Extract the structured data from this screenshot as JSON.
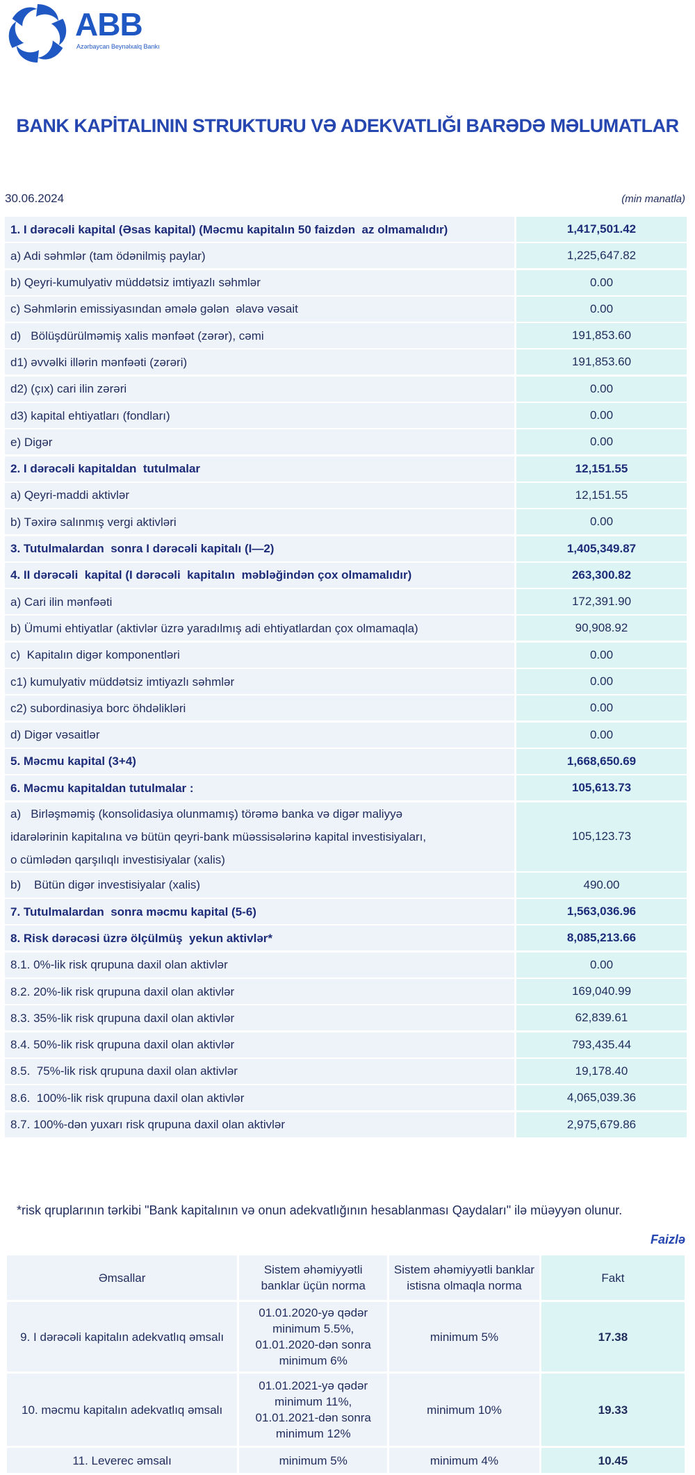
{
  "header": {
    "logo_text": "ABB",
    "logo_subtitle": "Azərbaycan Beynəlxalq Bankı",
    "title": "BANK KAPİTALININ STRUKTURU VƏ ADEKVATLIĞI BARƏDƏ MƏLUMATLAR",
    "date": "30.06.2024",
    "unit": "(min manatla)"
  },
  "table": {
    "rows": [
      {
        "label": [
          "1. I dərəcəli kapital (Əsas kapital) (Məcmu kapitalın 50 faizdən  az olmamalıdır)"
        ],
        "value": "1,417,501.42",
        "emphasis": true
      },
      {
        "label": [
          "a) Adi səhmlər (tam ödənilmiş paylar)"
        ],
        "value": "1,225,647.82"
      },
      {
        "label": [
          "b) Qeyri-kumulyativ müddətsiz imtiyazlı səhmlər"
        ],
        "value": "0.00"
      },
      {
        "label": [
          "c) Səhmlərin emissiyasından əmələ gələn  əlavə vəsait"
        ],
        "value": "0.00"
      },
      {
        "label": [
          "d)   Bölüşdürülməmiş xalis mənfəət (zərər), cəmi"
        ],
        "value": "191,853.60"
      },
      {
        "label": [
          "d1) əvvəlki illərin mənfəəti (zərəri)"
        ],
        "value": "191,853.60"
      },
      {
        "label": [
          "d2) (çıx) cari ilin zərəri"
        ],
        "value": "0.00"
      },
      {
        "label": [
          "d3) kapital ehtiyatları (fondları)"
        ],
        "value": "0.00"
      },
      {
        "label": [
          "e) Digər"
        ],
        "value": "0.00"
      },
      {
        "label": [
          "2. I dərəcəli kapitaldan  tutulmalar"
        ],
        "value": "12,151.55",
        "emphasis": true
      },
      {
        "label": [
          "a) Qeyri-maddi aktivlər"
        ],
        "value": "12,151.55"
      },
      {
        "label": [
          "b) Təxirə salınmış vergi aktivləri"
        ],
        "value": "0.00"
      },
      {
        "label": [
          "3. Tutulmalardan  sonra I dərəcəli kapitalı (I—2)"
        ],
        "value": "1,405,349.87",
        "emphasis": true
      },
      {
        "label": [
          "4. II dərəcəli  kapital (I dərəcəli  kapitalın  məbləğindən çox olmamalıdır)"
        ],
        "value": "263,300.82",
        "emphasis": true
      },
      {
        "label": [
          "a) Cari ilin mənfəəti"
        ],
        "value": "172,391.90"
      },
      {
        "label": [
          "b) Ümumi ehtiyatlar (aktivlər üzrə yaradılmış adi ehtiyatlardan çox olmamaqla)"
        ],
        "value": "90,908.92"
      },
      {
        "label": [
          "c)  Kapitalın digər komponentləri"
        ],
        "value": "0.00"
      },
      {
        "label": [
          "c1) kumulyativ müddətsiz imtiyazlı səhmlər"
        ],
        "value": "0.00"
      },
      {
        "label": [
          "c2) subordinasiya borc öhdəlikləri"
        ],
        "value": "0.00"
      },
      {
        "label": [
          "d) Digər vəsaitlər"
        ],
        "value": "0.00"
      },
      {
        "label": [
          "5. Məcmu kapital (3+4)"
        ],
        "value": "1,668,650.69",
        "emphasis": true
      },
      {
        "label": [
          "6. Məcmu kapitaldan tutulmalar :"
        ],
        "value": "105,613.73",
        "emphasis": true
      },
      {
        "label": [
          "a)   Birləşməmiş (konsolidasiya olunmamış) törəmə banka və digər maliyyə",
          "idarələrinin kapitalına və bütün qeyri-bank müəssisələrinə kapital investisiyaları,",
          "o cümlədən qarşılıqlı investisiyalar (xalis)"
        ],
        "value": "105,123.73"
      },
      {
        "label": [
          "b)    Bütün digər investisiyalar (xalis)"
        ],
        "value": "490.00"
      },
      {
        "label": [
          "7. Tutulmalardan  sonra məcmu kapital (5-6)"
        ],
        "value": "1,563,036.96",
        "emphasis": true
      },
      {
        "label": [
          "8. Risk dərəcəsi üzrə ölçülmüş  yekun aktivlər*"
        ],
        "value": "8,085,213.66",
        "emphasis": true
      },
      {
        "label": [
          "8.1. 0%-lik risk qrupuna daxil olan aktivlər"
        ],
        "value": "0.00"
      },
      {
        "label": [
          "8.2. 20%-lik risk qrupuna daxil olan aktivlər"
        ],
        "value": "169,040.99"
      },
      {
        "label": [
          "8.3. 35%-lik risk qrupuna daxil olan aktivlər"
        ],
        "value": "62,839.61"
      },
      {
        "label": [
          "8.4. 50%-lik risk qrupuna daxil olan aktivlər"
        ],
        "value": "793,435.44"
      },
      {
        "label": [
          "8.5.  75%-lik risk qrupuna daxil olan aktivlər"
        ],
        "value": "19,178.40"
      },
      {
        "label": [
          "8.6.  100%-lik risk qrupuna daxil olan aktivlər"
        ],
        "value": "4,065,039.36"
      },
      {
        "label": [
          "8.7. 100%-dən yuxarı risk qrupuna daxil olan aktivlər"
        ],
        "value": "2,975,679.86"
      }
    ]
  },
  "footnote": "*risk qruplarının tərkibi \"Bank kapitalının və onun adekvatlığının hesablanması Qaydaları\" ilə müəyyən olunur.",
  "ratios": {
    "unit": "Faizlə",
    "header": [
      [
        "Əmsallar"
      ],
      [
        "Sistem əhəmiyyətli",
        "banklar üçün norma"
      ],
      [
        "Sistem əhəmiyyətli banklar",
        "istisna olmaqla norma"
      ],
      [
        "Fakt"
      ]
    ],
    "rows": [
      [
        [
          "9.  I dərəcəli  kapitalın  adekvatlıq əmsalı"
        ],
        [
          "01.01.2020-yə qədər",
          "minimum 5.5%,",
          "01.01.2020-dən sonra",
          "minimum 6%"
        ],
        [
          "minimum 5%"
        ],
        [
          "17.38"
        ]
      ],
      [
        [
          "10. məcmu kapitalın  adekvatlıq  əmsalı"
        ],
        [
          "01.01.2021-yə qədər",
          "minimum 11%,",
          "01.01.2021-dən sonra",
          "minimum 12%"
        ],
        [
          "minimum 10%"
        ],
        [
          "19.33"
        ]
      ],
      [
        [
          "11. Leverec əmsalı"
        ],
        [
          "minimum 5%"
        ],
        [
          "minimum 4%"
        ],
        [
          "10.45"
        ]
      ]
    ]
  }
}
